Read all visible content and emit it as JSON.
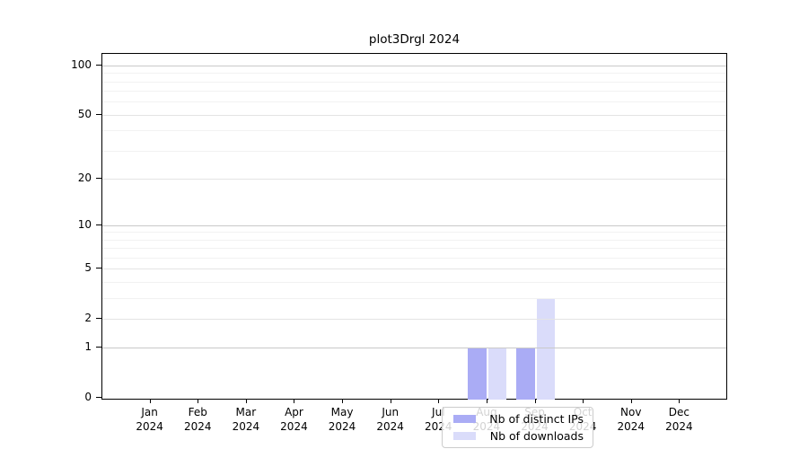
{
  "title": "plot3Drgl 2024",
  "colors": {
    "ips": "#aaacf5",
    "downloads": "#dadcfa",
    "grid_major": "#c9c9c9",
    "grid_mid": "#e4e4e4",
    "grid_minor": "#f2f2f2",
    "axis": "#000000",
    "legend_border": "#cccccc"
  },
  "legend": {
    "items": [
      {
        "label": "Nb of distinct IPs",
        "color_key": "ips"
      },
      {
        "label": "Nb of downloads",
        "color_key": "downloads"
      }
    ]
  },
  "chart_data": {
    "type": "bar",
    "title": "plot3Drgl 2024",
    "scale": "log1p",
    "categories": [
      "Jan",
      "Feb",
      "Mar",
      "Apr",
      "May",
      "Jun",
      "Jul",
      "Aug",
      "Sep",
      "Oct",
      "Nov",
      "Dec"
    ],
    "year_label": "2024",
    "series": [
      {
        "name": "Nb of distinct IPs",
        "values": [
          0,
          0,
          0,
          0,
          0,
          0,
          0,
          1,
          1,
          0,
          0,
          0
        ]
      },
      {
        "name": "Nb of downloads",
        "values": [
          0,
          0,
          0,
          0,
          0,
          0,
          0,
          1,
          3,
          0,
          0,
          0
        ]
      }
    ],
    "y_ticks": [
      0,
      1,
      2,
      5,
      10,
      20,
      50,
      100
    ],
    "y_tick_labels": [
      "0",
      "1",
      "2",
      "5",
      "10",
      "20",
      "50",
      "100"
    ],
    "y_major_gridlines": [
      1,
      10,
      100
    ],
    "y_minor_gridlines": [
      3,
      4,
      6,
      7,
      8,
      9,
      30,
      40,
      60,
      70,
      80,
      90
    ],
    "ylim": [
      0,
      117
    ],
    "xlabel": "",
    "ylabel": "",
    "grid": true,
    "legend_position": "lower center"
  }
}
